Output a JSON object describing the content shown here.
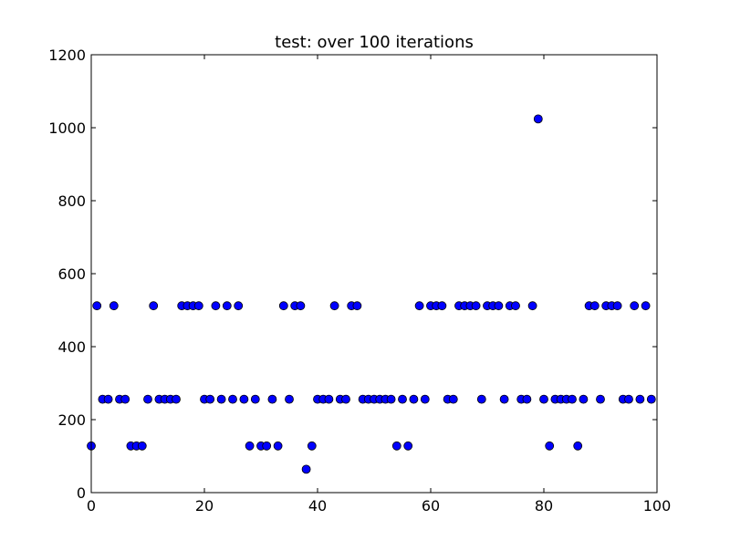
{
  "chart_data": {
    "type": "scatter",
    "title": "test: over 100 iterations",
    "xlabel": "",
    "ylabel": "",
    "xlim": [
      0,
      100
    ],
    "ylim": [
      0,
      1200
    ],
    "xticks": [
      0,
      20,
      40,
      60,
      80,
      100
    ],
    "yticks": [
      0,
      200,
      400,
      600,
      800,
      1000,
      1200
    ],
    "xtick_labels": [
      "0",
      "20",
      "40",
      "60",
      "80",
      "100"
    ],
    "ytick_labels": [
      "0",
      "200",
      "400",
      "600",
      "800",
      "1000",
      "1200"
    ],
    "grid": false,
    "legend": "none",
    "marker_color": "#0000ff",
    "x": [
      0,
      1,
      2,
      3,
      4,
      5,
      6,
      7,
      8,
      9,
      10,
      11,
      12,
      13,
      14,
      15,
      16,
      17,
      18,
      19,
      20,
      21,
      22,
      23,
      24,
      25,
      26,
      27,
      28,
      29,
      30,
      31,
      32,
      33,
      34,
      35,
      36,
      37,
      38,
      39,
      40,
      41,
      42,
      43,
      44,
      45,
      46,
      47,
      48,
      49,
      50,
      51,
      52,
      53,
      54,
      55,
      56,
      57,
      58,
      59,
      60,
      61,
      62,
      63,
      64,
      65,
      66,
      67,
      68,
      69,
      70,
      71,
      72,
      73,
      74,
      75,
      76,
      77,
      78,
      79,
      80,
      81,
      82,
      83,
      84,
      85,
      86,
      87,
      88,
      89,
      90,
      91,
      92,
      93,
      94,
      95,
      96,
      97,
      98,
      99
    ],
    "y": [
      128,
      512,
      256,
      256,
      512,
      256,
      256,
      128,
      128,
      128,
      256,
      512,
      256,
      256,
      256,
      256,
      512,
      512,
      512,
      512,
      256,
      256,
      512,
      256,
      512,
      256,
      512,
      256,
      128,
      256,
      128,
      128,
      256,
      128,
      512,
      256,
      512,
      512,
      64,
      128,
      256,
      256,
      256,
      512,
      256,
      256,
      512,
      512,
      256,
      256,
      256,
      256,
      256,
      256,
      128,
      256,
      128,
      256,
      512,
      256,
      512,
      512,
      512,
      256,
      256,
      512,
      512,
      512,
      512,
      256,
      512,
      512,
      512,
      256,
      512,
      512,
      256,
      256,
      512,
      1024,
      256,
      128,
      256,
      256,
      256,
      256,
      128,
      256,
      512,
      512,
      256,
      512,
      512,
      512,
      256,
      256,
      512,
      256,
      512,
      256
    ]
  }
}
